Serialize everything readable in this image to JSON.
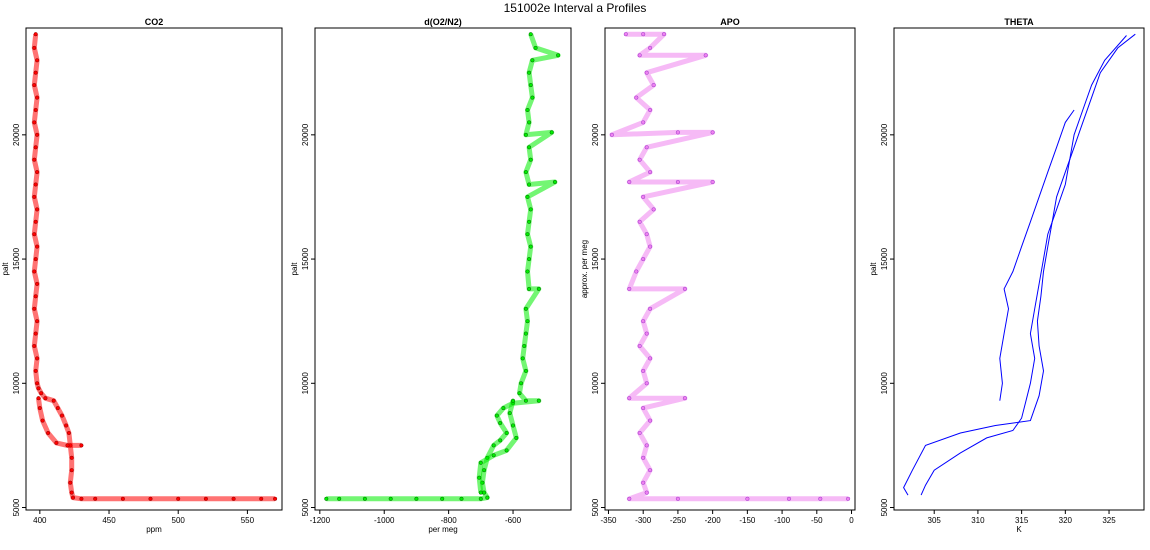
{
  "figure": {
    "title": "151002e   Interval a Profiles"
  },
  "chart_data": [
    {
      "type": "scatter",
      "title": "CO2",
      "xlabel": "ppm",
      "ylabel": "palt",
      "xlim": [
        390,
        575
      ],
      "ylim": [
        4900,
        24300
      ],
      "xticks": [
        400,
        450,
        500,
        550
      ],
      "yticks": [
        5000,
        10000,
        15000,
        20000
      ],
      "color": "#ff0000",
      "edge_color": "#8b0000",
      "series": [
        {
          "name": "",
          "points": [
            [
              397,
              24050
            ],
            [
              396,
              23500
            ],
            [
              398,
              23000
            ],
            [
              397,
              22500
            ],
            [
              396,
              22000
            ],
            [
              398,
              21500
            ],
            [
              397,
              21000
            ],
            [
              396,
              20500
            ],
            [
              398,
              20000
            ],
            [
              397,
              19500
            ],
            [
              396,
              19000
            ],
            [
              398,
              18500
            ],
            [
              397,
              18000
            ],
            [
              396,
              17500
            ],
            [
              398,
              17000
            ],
            [
              397,
              16500
            ],
            [
              396,
              16000
            ],
            [
              398,
              15500
            ],
            [
              397,
              15000
            ],
            [
              396,
              14500
            ],
            [
              398,
              14000
            ],
            [
              397,
              13500
            ],
            [
              396,
              13000
            ],
            [
              398,
              12500
            ],
            [
              397,
              12000
            ],
            [
              396,
              11500
            ],
            [
              398,
              11000
            ],
            [
              397,
              10500
            ],
            [
              398,
              10000
            ],
            [
              399,
              9800
            ],
            [
              401,
              9600
            ],
            [
              404,
              9400
            ],
            [
              410,
              9300
            ],
            [
              413,
              9000
            ],
            [
              416,
              8700
            ],
            [
              419,
              8300
            ],
            [
              421,
              8000
            ],
            [
              422,
              7500
            ],
            [
              423,
              7000
            ],
            [
              423,
              6500
            ],
            [
              422,
              6000
            ],
            [
              423,
              5600
            ],
            [
              424,
              5400
            ],
            [
              430,
              5350
            ],
            [
              440,
              5350
            ],
            [
              460,
              5350
            ],
            [
              480,
              5350
            ],
            [
              500,
              5350
            ],
            [
              520,
              5350
            ],
            [
              540,
              5350
            ],
            [
              560,
              5350
            ],
            [
              570,
              5350
            ]
          ]
        },
        {
          "name": "",
          "points": [
            [
              399,
              9400
            ],
            [
              400,
              9000
            ],
            [
              402,
              8500
            ],
            [
              406,
              8000
            ],
            [
              412,
              7600
            ],
            [
              420,
              7500
            ],
            [
              430,
              7500
            ]
          ]
        }
      ]
    },
    {
      "type": "scatter",
      "title": "d(O2/N2)",
      "xlabel": "per meg",
      "ylabel": "palt",
      "xlim": [
        -1215,
        -420
      ],
      "ylim": [
        4900,
        24300
      ],
      "xticks": [
        -1200,
        -1000,
        -800,
        -600
      ],
      "yticks": [
        5000,
        10000,
        15000,
        20000
      ],
      "color": "#00ee00",
      "edge_color": "#006400",
      "series": [
        {
          "name": "",
          "points": [
            [
              -545,
              24050
            ],
            [
              -530,
              23500
            ],
            [
              -460,
              23200
            ],
            [
              -540,
              23000
            ],
            [
              -550,
              22500
            ],
            [
              -545,
              22000
            ],
            [
              -540,
              21500
            ],
            [
              -555,
              21000
            ],
            [
              -550,
              20500
            ],
            [
              -560,
              20000
            ],
            [
              -480,
              20100
            ],
            [
              -550,
              19500
            ],
            [
              -545,
              19000
            ],
            [
              -560,
              18500
            ],
            [
              -550,
              18000
            ],
            [
              -470,
              18100
            ],
            [
              -555,
              17500
            ],
            [
              -545,
              17000
            ],
            [
              -550,
              16500
            ],
            [
              -555,
              16000
            ],
            [
              -545,
              15500
            ],
            [
              -550,
              15000
            ],
            [
              -555,
              14500
            ],
            [
              -550,
              13800
            ],
            [
              -520,
              13800
            ],
            [
              -560,
              13000
            ],
            [
              -555,
              12500
            ],
            [
              -560,
              12000
            ],
            [
              -565,
              11500
            ],
            [
              -570,
              11000
            ],
            [
              -560,
              10500
            ],
            [
              -575,
              10000
            ],
            [
              -580,
              9600
            ],
            [
              -560,
              9300
            ],
            [
              -520,
              9300
            ],
            [
              -600,
              9200
            ],
            [
              -630,
              9000
            ],
            [
              -650,
              8700
            ],
            [
              -640,
              8400
            ],
            [
              -620,
              8000
            ],
            [
              -640,
              7700
            ],
            [
              -660,
              7500
            ],
            [
              -680,
              7000
            ],
            [
              -690,
              6500
            ],
            [
              -695,
              6000
            ],
            [
              -690,
              5600
            ],
            [
              -680,
              5400
            ],
            [
              -700,
              5350
            ],
            [
              -760,
              5350
            ],
            [
              -820,
              5350
            ],
            [
              -900,
              5350
            ],
            [
              -980,
              5350
            ],
            [
              -1060,
              5350
            ],
            [
              -1140,
              5350
            ],
            [
              -1180,
              5350
            ]
          ]
        },
        {
          "name": "",
          "points": [
            [
              -600,
              9300
            ],
            [
              -610,
              8800
            ],
            [
              -600,
              8300
            ],
            [
              -590,
              7800
            ],
            [
              -620,
              7300
            ],
            [
              -660,
              7100
            ],
            [
              -700,
              6800
            ],
            [
              -705,
              6200
            ],
            [
              -700,
              5600
            ]
          ]
        }
      ]
    },
    {
      "type": "scatter",
      "title": "APO",
      "xlabel": "",
      "ylabel": "approx. per meg",
      "xlim": [
        -355,
        5
      ],
      "ylim": [
        4900,
        24300
      ],
      "xticks": [
        -350,
        -300,
        -250,
        -200,
        -150,
        -100,
        -50,
        0
      ],
      "yticks": [
        5000,
        10000,
        15000,
        20000
      ],
      "color": "#ee82ee",
      "edge_color": "#9932cc",
      "series": [
        {
          "name": "",
          "points": [
            [
              -325,
              24050
            ],
            [
              -300,
              24050
            ],
            [
              -270,
              24050
            ],
            [
              -290,
              23500
            ],
            [
              -305,
              23200
            ],
            [
              -210,
              23200
            ],
            [
              -295,
              22500
            ],
            [
              -285,
              22000
            ],
            [
              -310,
              21500
            ],
            [
              -290,
              21000
            ],
            [
              -300,
              20500
            ],
            [
              -345,
              20000
            ],
            [
              -250,
              20100
            ],
            [
              -200,
              20100
            ],
            [
              -295,
              19500
            ],
            [
              -305,
              19000
            ],
            [
              -290,
              18500
            ],
            [
              -320,
              18100
            ],
            [
              -250,
              18100
            ],
            [
              -200,
              18100
            ],
            [
              -300,
              17500
            ],
            [
              -285,
              17000
            ],
            [
              -305,
              16500
            ],
            [
              -295,
              16000
            ],
            [
              -290,
              15500
            ],
            [
              -300,
              15000
            ],
            [
              -310,
              14500
            ],
            [
              -320,
              13800
            ],
            [
              -240,
              13800
            ],
            [
              -290,
              13000
            ],
            [
              -300,
              12500
            ],
            [
              -295,
              12000
            ],
            [
              -305,
              11500
            ],
            [
              -290,
              11000
            ],
            [
              -300,
              10500
            ],
            [
              -295,
              10000
            ],
            [
              -320,
              9400
            ],
            [
              -240,
              9400
            ],
            [
              -300,
              9000
            ],
            [
              -290,
              8500
            ],
            [
              -305,
              8000
            ],
            [
              -295,
              7500
            ],
            [
              -300,
              7000
            ],
            [
              -290,
              6500
            ],
            [
              -300,
              6000
            ],
            [
              -295,
              5600
            ],
            [
              -320,
              5350
            ],
            [
              -250,
              5350
            ],
            [
              -150,
              5350
            ],
            [
              -90,
              5350
            ],
            [
              -45,
              5350
            ],
            [
              -5,
              5350
            ]
          ]
        }
      ]
    },
    {
      "type": "line",
      "title": "THETA",
      "xlabel": "K",
      "ylabel": "palt",
      "xlim": [
        300.4,
        329.0
      ],
      "ylim": [
        4900,
        24300
      ],
      "xticks": [
        305,
        310,
        315,
        320,
        325
      ],
      "yticks": [
        5000,
        10000,
        15000,
        20000
      ],
      "color": "#0000ff",
      "series": [
        {
          "name": "",
          "points": [
            [
              302,
              5500
            ],
            [
              301.5,
              5800
            ],
            [
              302.5,
              6500
            ],
            [
              304,
              7500
            ],
            [
              308,
              8000
            ],
            [
              312,
              8300
            ],
            [
              316,
              8500
            ],
            [
              317,
              9500
            ],
            [
              317.5,
              10500
            ],
            [
              317,
              11500
            ],
            [
              316.8,
              12500
            ],
            [
              317.2,
              13500
            ],
            [
              317.5,
              14500
            ],
            [
              318,
              15500
            ],
            [
              318.5,
              16500
            ],
            [
              319,
              17500
            ],
            [
              320,
              18500
            ],
            [
              321,
              19500
            ],
            [
              322,
              20500
            ],
            [
              323,
              21500
            ],
            [
              324,
              22500
            ],
            [
              326,
              23500
            ],
            [
              328,
              24050
            ]
          ]
        },
        {
          "name": "",
          "points": [
            [
              303.5,
              5500
            ],
            [
              304,
              5900
            ],
            [
              305,
              6500
            ],
            [
              308,
              7200
            ],
            [
              311,
              7800
            ],
            [
              314,
              8100
            ],
            [
              315,
              8600
            ],
            [
              315.5,
              9300
            ],
            [
              316,
              10000
            ],
            [
              316.5,
              11000
            ],
            [
              316,
              12000
            ],
            [
              316.5,
              13000
            ],
            [
              317,
              14000
            ],
            [
              317.5,
              15000
            ],
            [
              318,
              16000
            ],
            [
              319,
              17000
            ],
            [
              320,
              18000
            ],
            [
              320.5,
              19000
            ],
            [
              321,
              20000
            ],
            [
              322,
              21000
            ],
            [
              323,
              22000
            ],
            [
              324.5,
              23000
            ],
            [
              327,
              24000
            ]
          ]
        },
        {
          "name": "",
          "points": [
            [
              312.5,
              9300
            ],
            [
              312.8,
              10000
            ],
            [
              312.5,
              11000
            ],
            [
              313,
              12000
            ],
            [
              313.5,
              13000
            ],
            [
              313,
              13800
            ],
            [
              314,
              14500
            ],
            [
              315,
              15500
            ],
            [
              316,
              16500
            ],
            [
              317,
              17500
            ],
            [
              318,
              18500
            ],
            [
              319,
              19500
            ],
            [
              320,
              20500
            ],
            [
              321,
              21000
            ]
          ]
        }
      ]
    }
  ]
}
